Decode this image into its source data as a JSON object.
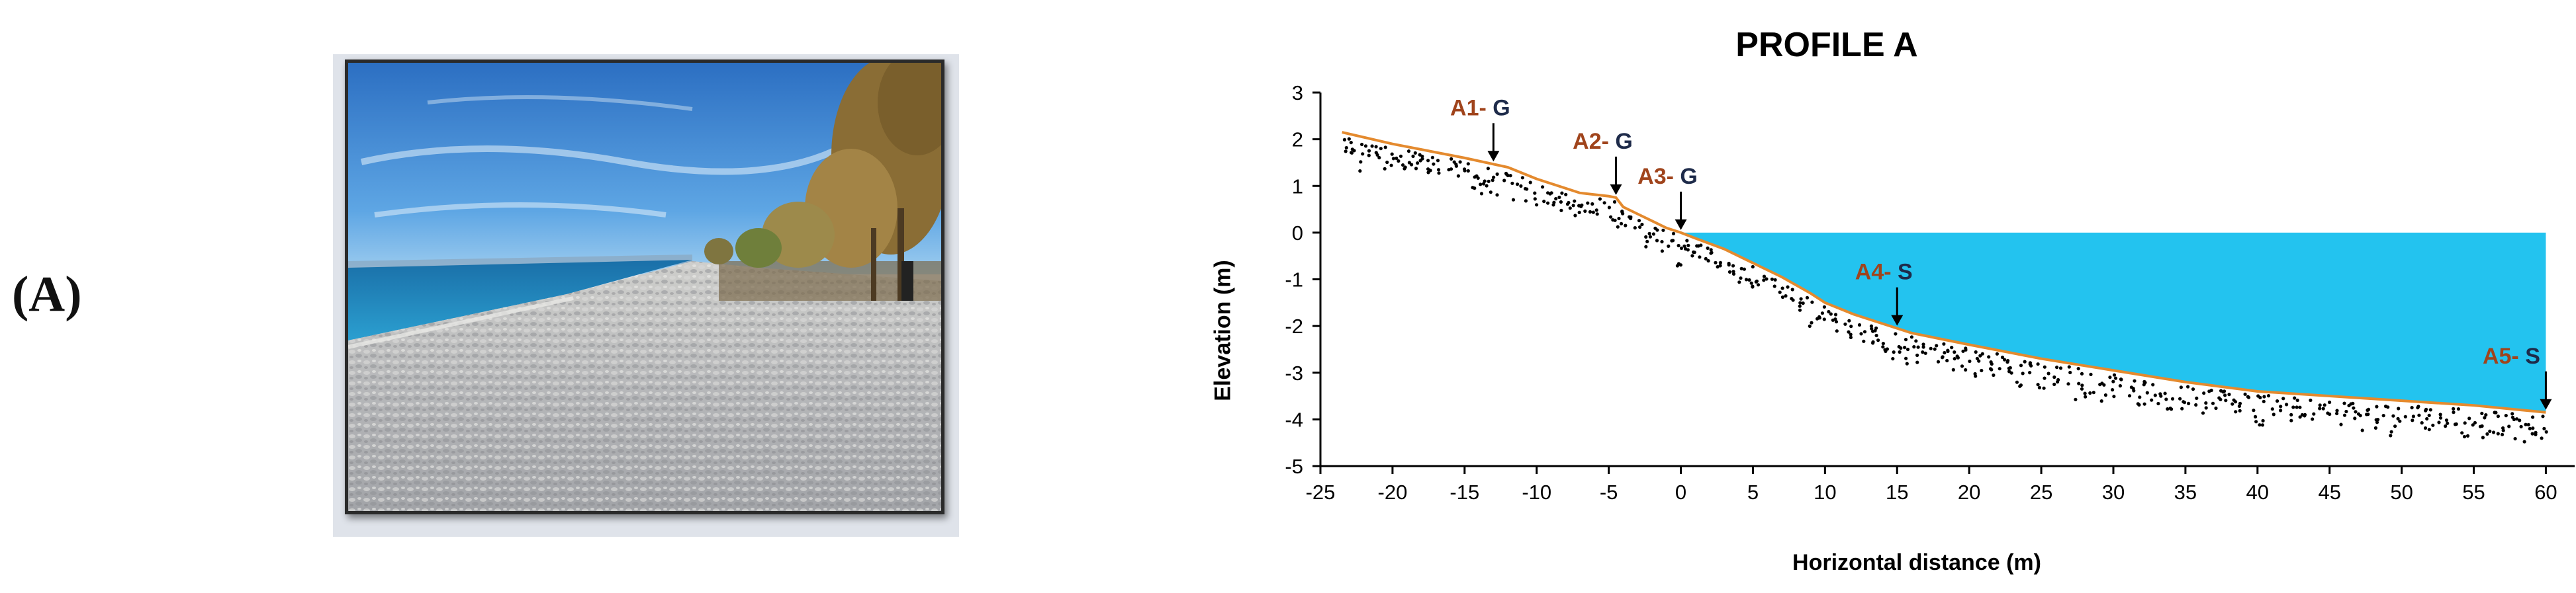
{
  "panel_label": "(A)",
  "photo": {
    "sky_color": "#3f8fd6",
    "sea_color": "#1b7fb8",
    "gravel_color": "#b9babd",
    "tree_color": "#9a7a3e"
  },
  "chart_data": {
    "type": "area",
    "title": "PROFILE A",
    "xlabel": "Horizontal distance (m)",
    "ylabel": "Elevation (m)",
    "xlim": [
      -25,
      62
    ],
    "ylim": [
      -5,
      3
    ],
    "xticks": [
      -25,
      -20,
      -15,
      -10,
      -5,
      0,
      5,
      10,
      15,
      20,
      25,
      30,
      35,
      40,
      45,
      50,
      55,
      60
    ],
    "yticks": [
      3,
      2,
      1,
      0,
      -1,
      -2,
      -3,
      -4,
      -5
    ],
    "grid": false,
    "profile": {
      "x": [
        -23.5,
        -20,
        -15,
        -12,
        -10,
        -8,
        -7,
        -5,
        -4.5,
        -4,
        -3,
        -2,
        -1,
        0,
        1,
        3,
        5,
        7,
        9,
        10,
        12,
        14,
        16,
        20,
        25,
        30,
        35,
        40,
        45,
        50,
        55,
        60
      ],
      "y": [
        2.15,
        1.9,
        1.6,
        1.4,
        1.15,
        0.95,
        0.85,
        0.78,
        0.75,
        0.55,
        0.4,
        0.25,
        0.1,
        0.0,
        -0.12,
        -0.35,
        -0.65,
        -0.95,
        -1.3,
        -1.5,
        -1.75,
        -1.95,
        -2.15,
        -2.4,
        -2.7,
        -2.95,
        -3.2,
        -3.4,
        -3.5,
        -3.6,
        -3.7,
        -3.85
      ]
    },
    "water_level": 0,
    "water_right_edge": 60,
    "colors": {
      "water": "#23c3ef",
      "profile_line": "#e48a2e",
      "annotation_code": "#a0441c",
      "annotation_type": "#1e2b4a",
      "sediment_dots": "#000000"
    },
    "annotations": [
      {
        "code": "A1-",
        "type": "G",
        "x": -13
      },
      {
        "code": "A2-",
        "type": "G",
        "x": -4.5
      },
      {
        "code": "A3-",
        "type": "G",
        "x": 0
      },
      {
        "code": "A4-",
        "type": "S",
        "x": 15
      },
      {
        "code": "A5-",
        "type": "S",
        "x": 60
      }
    ]
  }
}
